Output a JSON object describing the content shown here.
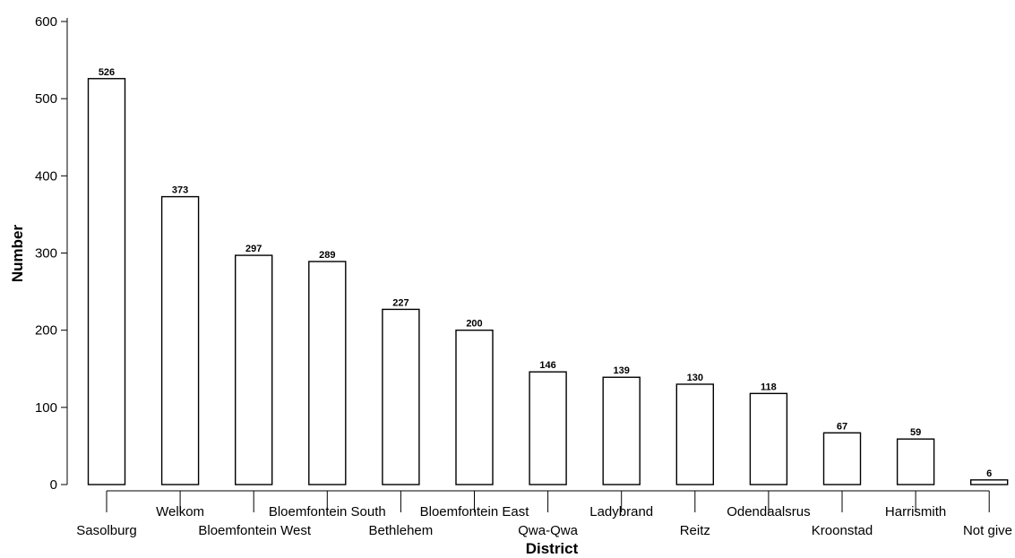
{
  "chart_data": {
    "type": "bar",
    "title": "",
    "xlabel": "District",
    "ylabel": "Number",
    "ylim": [
      0,
      600
    ],
    "yticks": [
      0,
      100,
      200,
      300,
      400,
      500,
      600
    ],
    "grid": false,
    "legend": "none",
    "bar_fill": "#ffffff",
    "bar_stroke": "#000000",
    "categories": [
      "Sasolburg",
      "Welkom",
      "Bloemfontein West",
      "Bloemfontein South",
      "Bethlehem",
      "Bloemfontein East",
      "Qwa-Qwa",
      "Ladybrand",
      "Reitz",
      "Odendaalsrus",
      "Kroonstad",
      "Harrismith",
      "Not give"
    ],
    "values": [
      526,
      373,
      297,
      289,
      227,
      200,
      146,
      139,
      130,
      118,
      67,
      59,
      6
    ]
  }
}
